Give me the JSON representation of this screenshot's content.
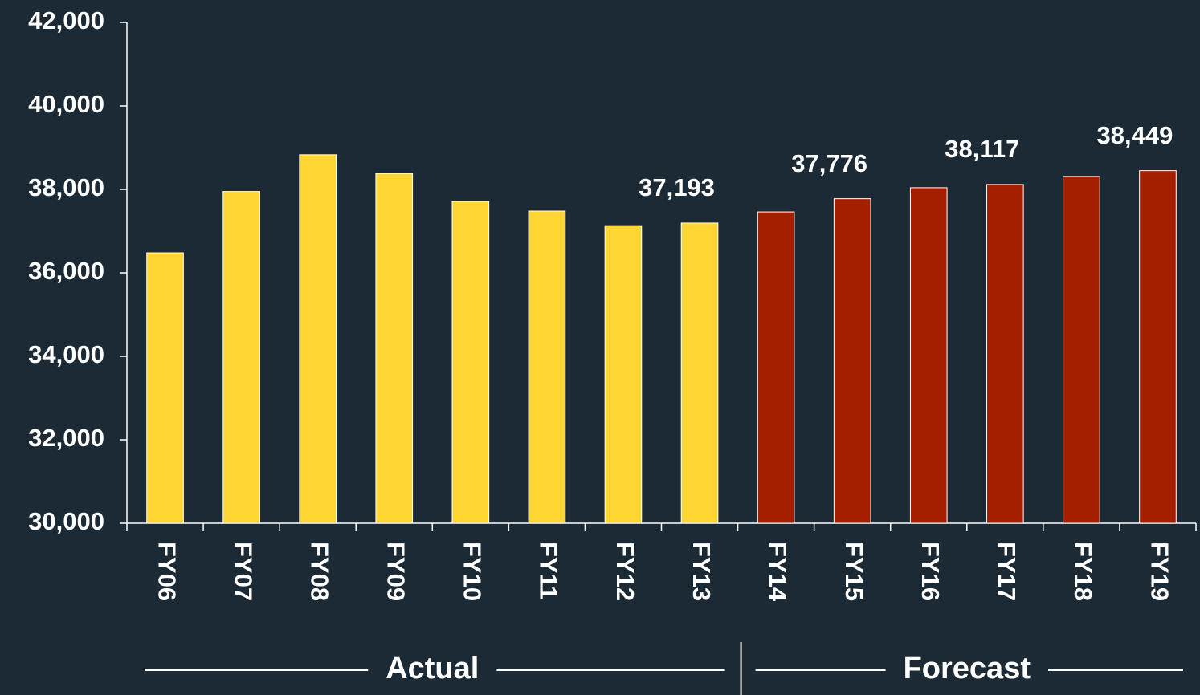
{
  "chart_data": {
    "type": "bar",
    "categories": [
      "FY06",
      "FY07",
      "FY08",
      "FY09",
      "FY10",
      "FY11",
      "FY12",
      "FY13",
      "FY14",
      "FY15",
      "FY16",
      "FY17",
      "FY18",
      "FY19"
    ],
    "series": [
      {
        "name": "Actual",
        "color": "#ffd633",
        "values": [
          36480,
          37950,
          38830,
          38380,
          37710,
          37480,
          37130,
          37193,
          null,
          null,
          null,
          null,
          null,
          null
        ],
        "value_labels": [
          null,
          null,
          null,
          null,
          null,
          null,
          null,
          "37,193",
          null,
          null,
          null,
          null,
          null,
          null
        ]
      },
      {
        "name": "Forecast",
        "color": "#a31f00",
        "values": [
          null,
          null,
          null,
          null,
          null,
          null,
          null,
          null,
          37460,
          37776,
          38040,
          38117,
          38310,
          38449
        ],
        "value_labels": [
          null,
          null,
          null,
          null,
          null,
          null,
          null,
          null,
          null,
          "37,776",
          null,
          "38,117",
          null,
          "38,449"
        ]
      }
    ],
    "ylim": [
      30000,
      42000
    ],
    "yticks": [
      {
        "value": 30000,
        "label": "30,000"
      },
      {
        "value": 32000,
        "label": "32,000"
      },
      {
        "value": 34000,
        "label": "34,000"
      },
      {
        "value": 36000,
        "label": "36,000"
      },
      {
        "value": 38000,
        "label": "38,000"
      },
      {
        "value": 40000,
        "label": "40,000"
      },
      {
        "value": 42000,
        "label": "42,000"
      }
    ]
  }
}
